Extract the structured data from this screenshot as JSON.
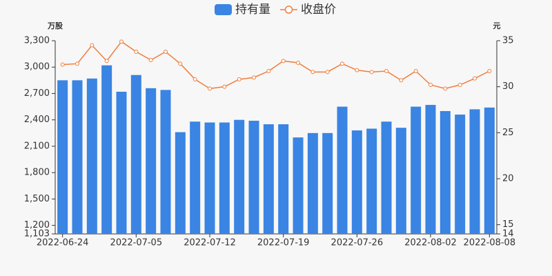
{
  "chart_data": {
    "type": "bar",
    "y_unit": "万股",
    "y2_unit": "元",
    "categories": [
      "2022-06-24",
      null,
      null,
      null,
      null,
      "2022-07-05",
      null,
      null,
      null,
      null,
      "2022-07-12",
      null,
      null,
      null,
      null,
      "2022-07-19",
      null,
      null,
      null,
      null,
      "2022-07-26",
      null,
      null,
      null,
      null,
      "2022-08-02",
      null,
      null,
      null,
      "2022-08-08"
    ],
    "series": [
      {
        "name": "持有量",
        "type": "bar",
        "color": "#3a84e3",
        "values": [
          2850,
          2850,
          2870,
          3020,
          2720,
          2910,
          2760,
          2740,
          2260,
          2380,
          2370,
          2370,
          2400,
          2390,
          2350,
          2350,
          2200,
          2250,
          2250,
          2550,
          2280,
          2300,
          2380,
          2310,
          2550,
          2570,
          2500,
          2460,
          2520,
          2540
        ]
      },
      {
        "name": "收盘价",
        "type": "line",
        "axis": "y2",
        "color": "#ee7d3c",
        "values": [
          32.4,
          32.5,
          34.5,
          32.8,
          34.9,
          33.8,
          32.9,
          33.8,
          32.5,
          30.8,
          29.8,
          30.0,
          30.8,
          31.0,
          31.7,
          32.8,
          32.6,
          31.6,
          31.6,
          32.5,
          31.8,
          31.6,
          31.7,
          30.7,
          31.7,
          30.2,
          29.8,
          30.2,
          30.9,
          31.7
        ]
      }
    ],
    "ylim": [
      1103,
      3300
    ],
    "yticks": [
      {
        "value": 1103,
        "label": "1,103"
      },
      {
        "value": 1200,
        "label": "1,200"
      },
      {
        "value": 1500,
        "label": "1,500"
      },
      {
        "value": 1800,
        "label": "1,800"
      },
      {
        "value": 2100,
        "label": "2,100"
      },
      {
        "value": 2400,
        "label": "2,400"
      },
      {
        "value": 2700,
        "label": "2,700"
      },
      {
        "value": 3000,
        "label": "3,000"
      },
      {
        "value": 3300,
        "label": "3,300"
      }
    ],
    "y2lim": [
      14,
      35
    ],
    "y2ticks": [
      14,
      15,
      20,
      25,
      30,
      35
    ],
    "grid": false
  }
}
